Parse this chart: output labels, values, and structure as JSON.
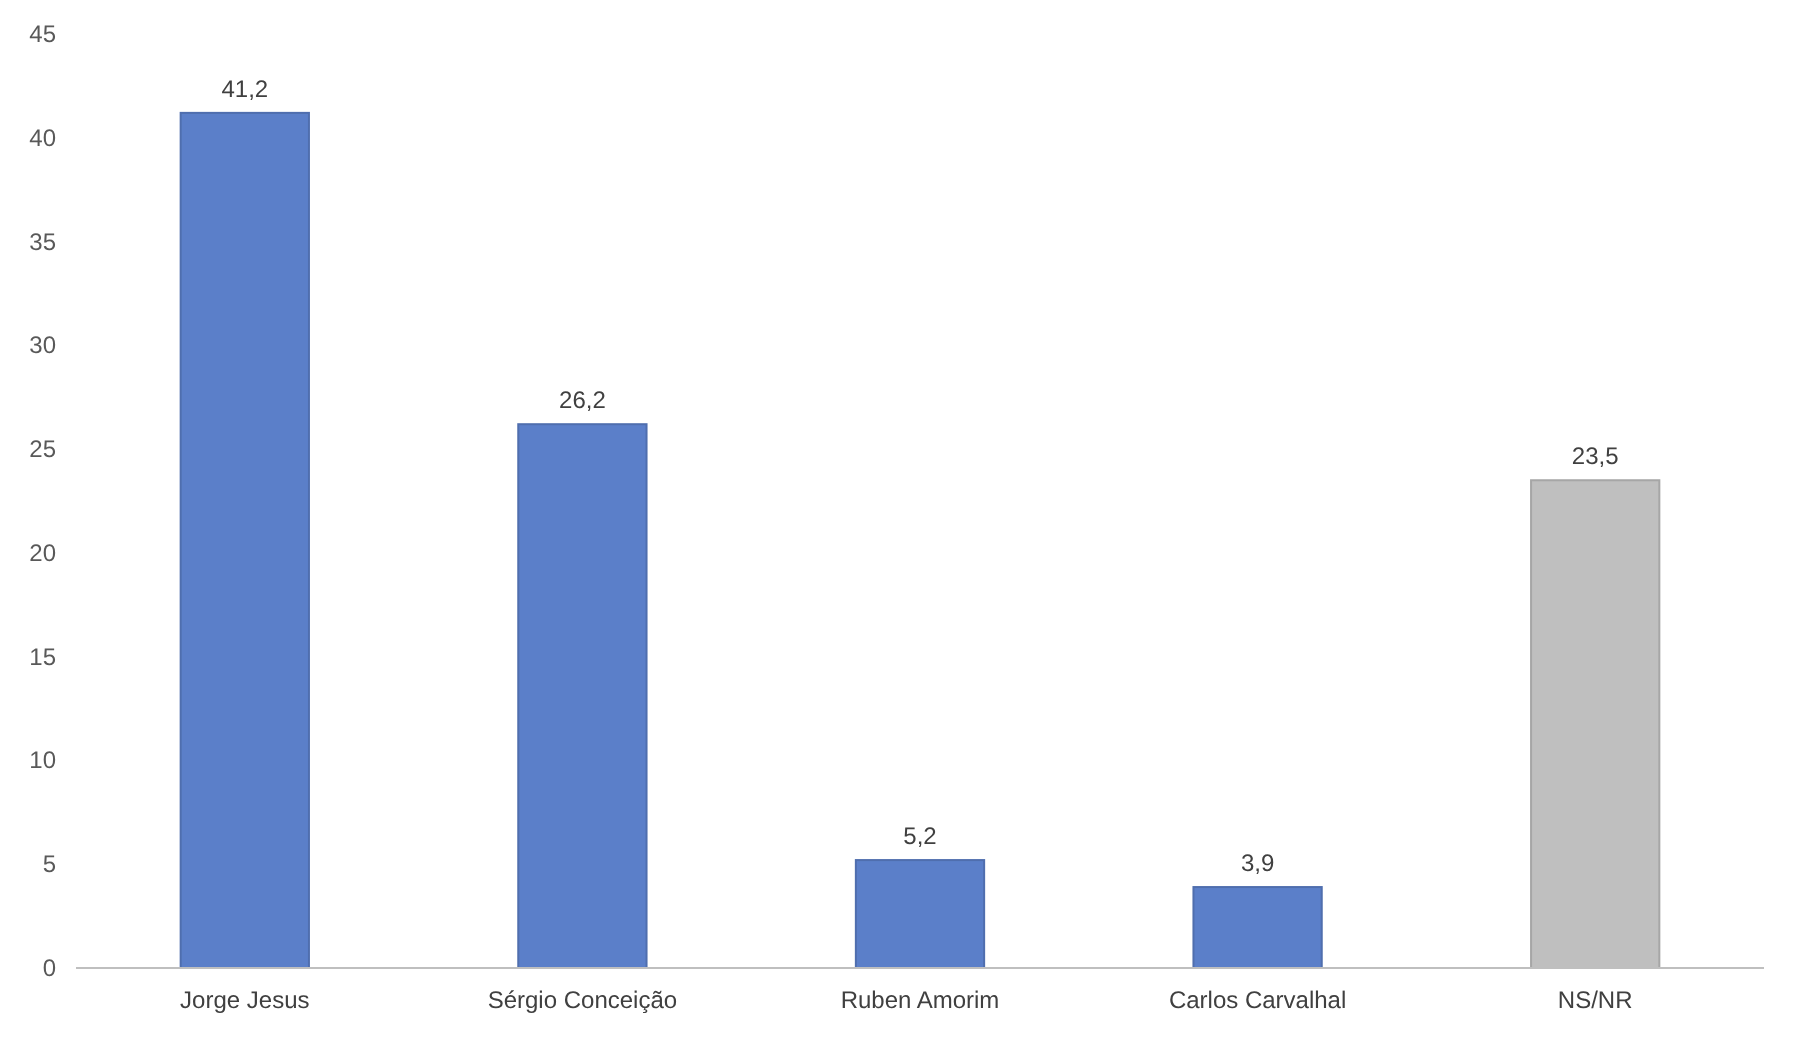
{
  "chart_data": {
    "type": "bar",
    "categories": [
      "Jorge Jesus",
      "Sérgio Conceição",
      "Ruben Amorim",
      "Carlos Carvalhal",
      "NS/NR"
    ],
    "values": [
      41.2,
      26.2,
      5.2,
      3.9,
      23.5
    ],
    "colors": [
      "#5b7fc9",
      "#5b7fc9",
      "#5b7fc9",
      "#5b7fc9",
      "#bfbfbf"
    ],
    "value_labels": [
      "41,2",
      "26,2",
      "5,2",
      "3,9",
      "23,5"
    ],
    "ylim": [
      0,
      45
    ],
    "yticks": [
      0,
      5,
      10,
      15,
      20,
      25,
      30,
      35,
      40,
      45
    ],
    "grid": false
  }
}
